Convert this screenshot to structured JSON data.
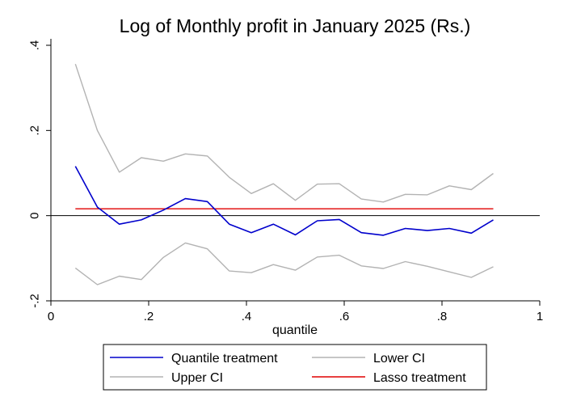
{
  "chart_data": {
    "type": "line",
    "title": "Log of Monthly profit in January 2025 (Rs.)",
    "xlabel": "quantile",
    "ylabel": "",
    "xlim": [
      0,
      1
    ],
    "ylim": [
      -0.2,
      0.4
    ],
    "x_ticks": [
      0,
      0.2,
      0.4,
      0.6,
      0.8,
      1
    ],
    "x_tick_labels": [
      "0",
      ".2",
      ".4",
      ".6",
      ".8",
      "1"
    ],
    "y_ticks": [
      -0.2,
      0,
      0.2,
      0.4
    ],
    "y_tick_labels": [
      "-.2",
      "0",
      ".2",
      ".4"
    ],
    "reference_line_y": 0,
    "grid": false,
    "legend_position": "bottom",
    "x": [
      0.05,
      0.095,
      0.14,
      0.185,
      0.23,
      0.275,
      0.32,
      0.365,
      0.41,
      0.455,
      0.5,
      0.545,
      0.59,
      0.635,
      0.68,
      0.725,
      0.77,
      0.815,
      0.86,
      0.905
    ],
    "series": [
      {
        "name": "Quantile treatment",
        "color": "#0000cc",
        "values": [
          0.116,
          0.02,
          -0.02,
          -0.01,
          0.013,
          0.04,
          0.033,
          -0.02,
          -0.04,
          -0.02,
          -0.045,
          -0.012,
          -0.009,
          -0.04,
          -0.046,
          -0.03,
          -0.035,
          -0.03,
          -0.041,
          -0.01
        ]
      },
      {
        "name": "Lower CI",
        "color": "#b3b3b3",
        "values": [
          -0.123,
          -0.162,
          -0.142,
          -0.15,
          -0.098,
          -0.064,
          -0.078,
          -0.13,
          -0.134,
          -0.115,
          -0.128,
          -0.097,
          -0.093,
          -0.118,
          -0.124,
          -0.108,
          -0.119,
          -0.132,
          -0.145,
          -0.12
        ]
      },
      {
        "name": "Upper CI",
        "color": "#b3b3b3",
        "values": [
          0.356,
          0.2,
          0.102,
          0.136,
          0.128,
          0.145,
          0.14,
          0.09,
          0.052,
          0.075,
          0.036,
          0.074,
          0.075,
          0.039,
          0.032,
          0.05,
          0.049,
          0.07,
          0.061,
          0.099
        ]
      },
      {
        "name": "Lasso treatment",
        "color": "#e00000",
        "values": [
          0.016,
          0.016,
          0.016,
          0.016,
          0.016,
          0.016,
          0.016,
          0.016,
          0.016,
          0.016,
          0.016,
          0.016,
          0.016,
          0.016,
          0.016,
          0.016,
          0.016,
          0.016,
          0.016,
          0.016
        ]
      }
    ],
    "legend_order": [
      0,
      1,
      2,
      3
    ]
  }
}
